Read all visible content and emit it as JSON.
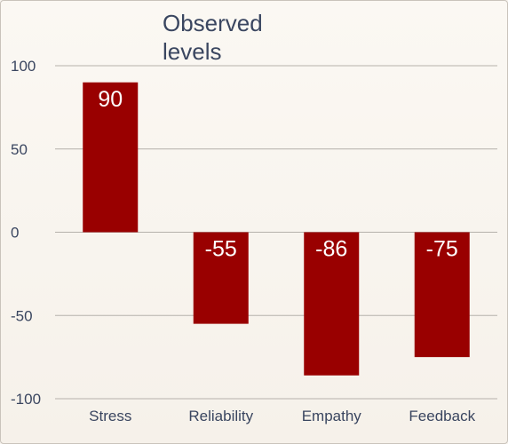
{
  "chart_data": {
    "type": "bar",
    "title": "Observed levels",
    "categories": [
      "Stress",
      "Reliability",
      "Empathy",
      "Feedback"
    ],
    "values": [
      90,
      -55,
      -86,
      -75
    ],
    "data_labels": [
      "90",
      "-55",
      "-86",
      "-75"
    ],
    "ylim": [
      -100,
      100
    ],
    "yticks": [
      100,
      50,
      0,
      -50,
      -100
    ],
    "ytick_labels": [
      "100",
      "50",
      "0",
      "-50",
      "-100"
    ],
    "grid": true,
    "bar_color": "#990000",
    "grid_color": "#b5b1ab",
    "label_color": "#ffffff"
  }
}
